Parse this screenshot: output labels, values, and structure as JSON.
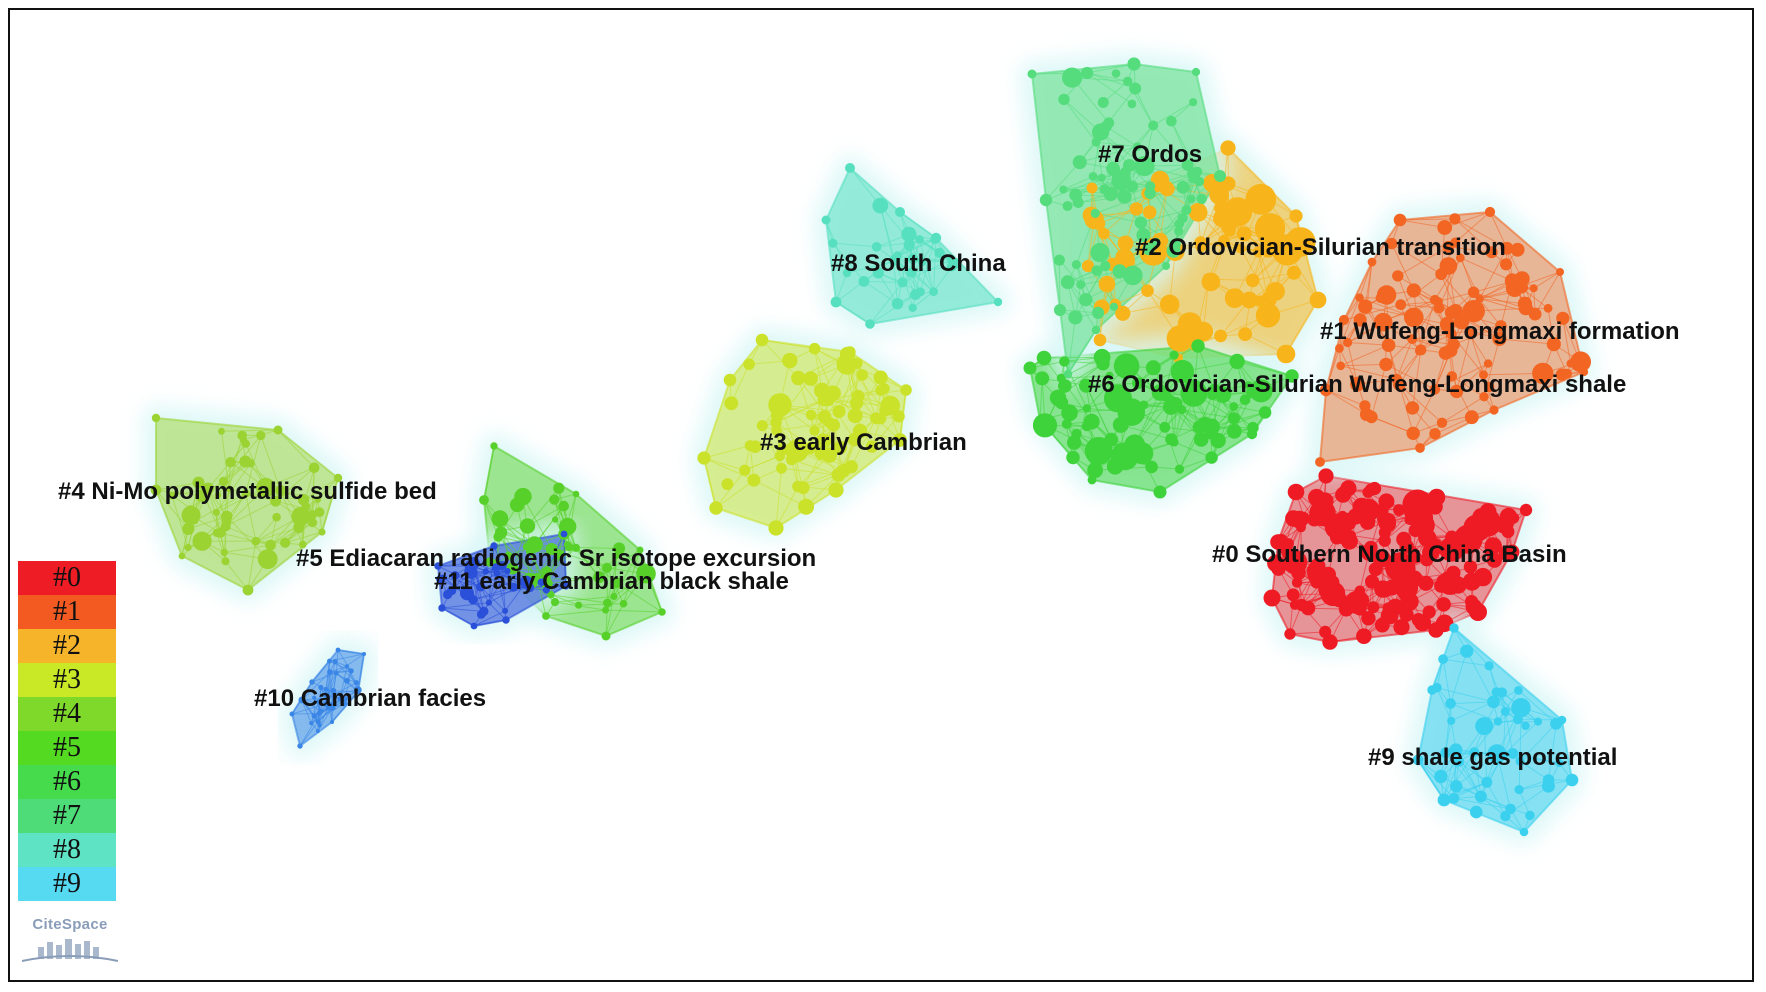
{
  "clusters": [
    {
      "id": "c0",
      "label": "#0 Southern North China Basin",
      "color": "#ee1b24"
    },
    {
      "id": "c1",
      "label": "#1 Wufeng-Longmaxi formation",
      "color": "#f26522"
    },
    {
      "id": "c2",
      "label": "#2 Ordovician-Silurian transition",
      "color": "#f7b51b"
    },
    {
      "id": "c3",
      "label": "#3 early Cambrian",
      "color": "#cbe22a"
    },
    {
      "id": "c4",
      "label": "#4 Ni-Mo polymetallic sulfide bed",
      "color": "#9bd333"
    },
    {
      "id": "c5",
      "label": "#5 Ediacaran radiogenic Sr isotope excursion",
      "color": "#57d12a"
    },
    {
      "id": "c6",
      "label": "#6 Ordovician-Silurian Wufeng-Longmaxi shale",
      "color": "#3ed33b"
    },
    {
      "id": "c7",
      "label": "#7 Ordos",
      "color": "#55dc7d"
    },
    {
      "id": "c8",
      "label": "#8 South China",
      "color": "#56e0bf"
    },
    {
      "id": "c9",
      "label": "#9 shale gas potential",
      "color": "#3cd0ef"
    },
    {
      "id": "c10",
      "label": "#10 Cambrian facies",
      "color": "#3a86e6"
    },
    {
      "id": "c11",
      "label": "#11 early Cambrian black shale",
      "color": "#2a4fd8"
    }
  ],
  "legend": [
    {
      "label": "#0",
      "color": "#ee1c25"
    },
    {
      "label": "#1",
      "color": "#f25a22"
    },
    {
      "label": "#2",
      "color": "#f6b42a"
    },
    {
      "label": "#3",
      "color": "#c9e826"
    },
    {
      "label": "#4",
      "color": "#7fd92b"
    },
    {
      "label": "#5",
      "color": "#55da22"
    },
    {
      "label": "#6",
      "color": "#45db4c"
    },
    {
      "label": "#7",
      "color": "#4ddc78"
    },
    {
      "label": "#8",
      "color": "#5ee3c4"
    },
    {
      "label": "#9",
      "color": "#55daf2"
    }
  ],
  "logo": {
    "text": "CiteSpace"
  }
}
